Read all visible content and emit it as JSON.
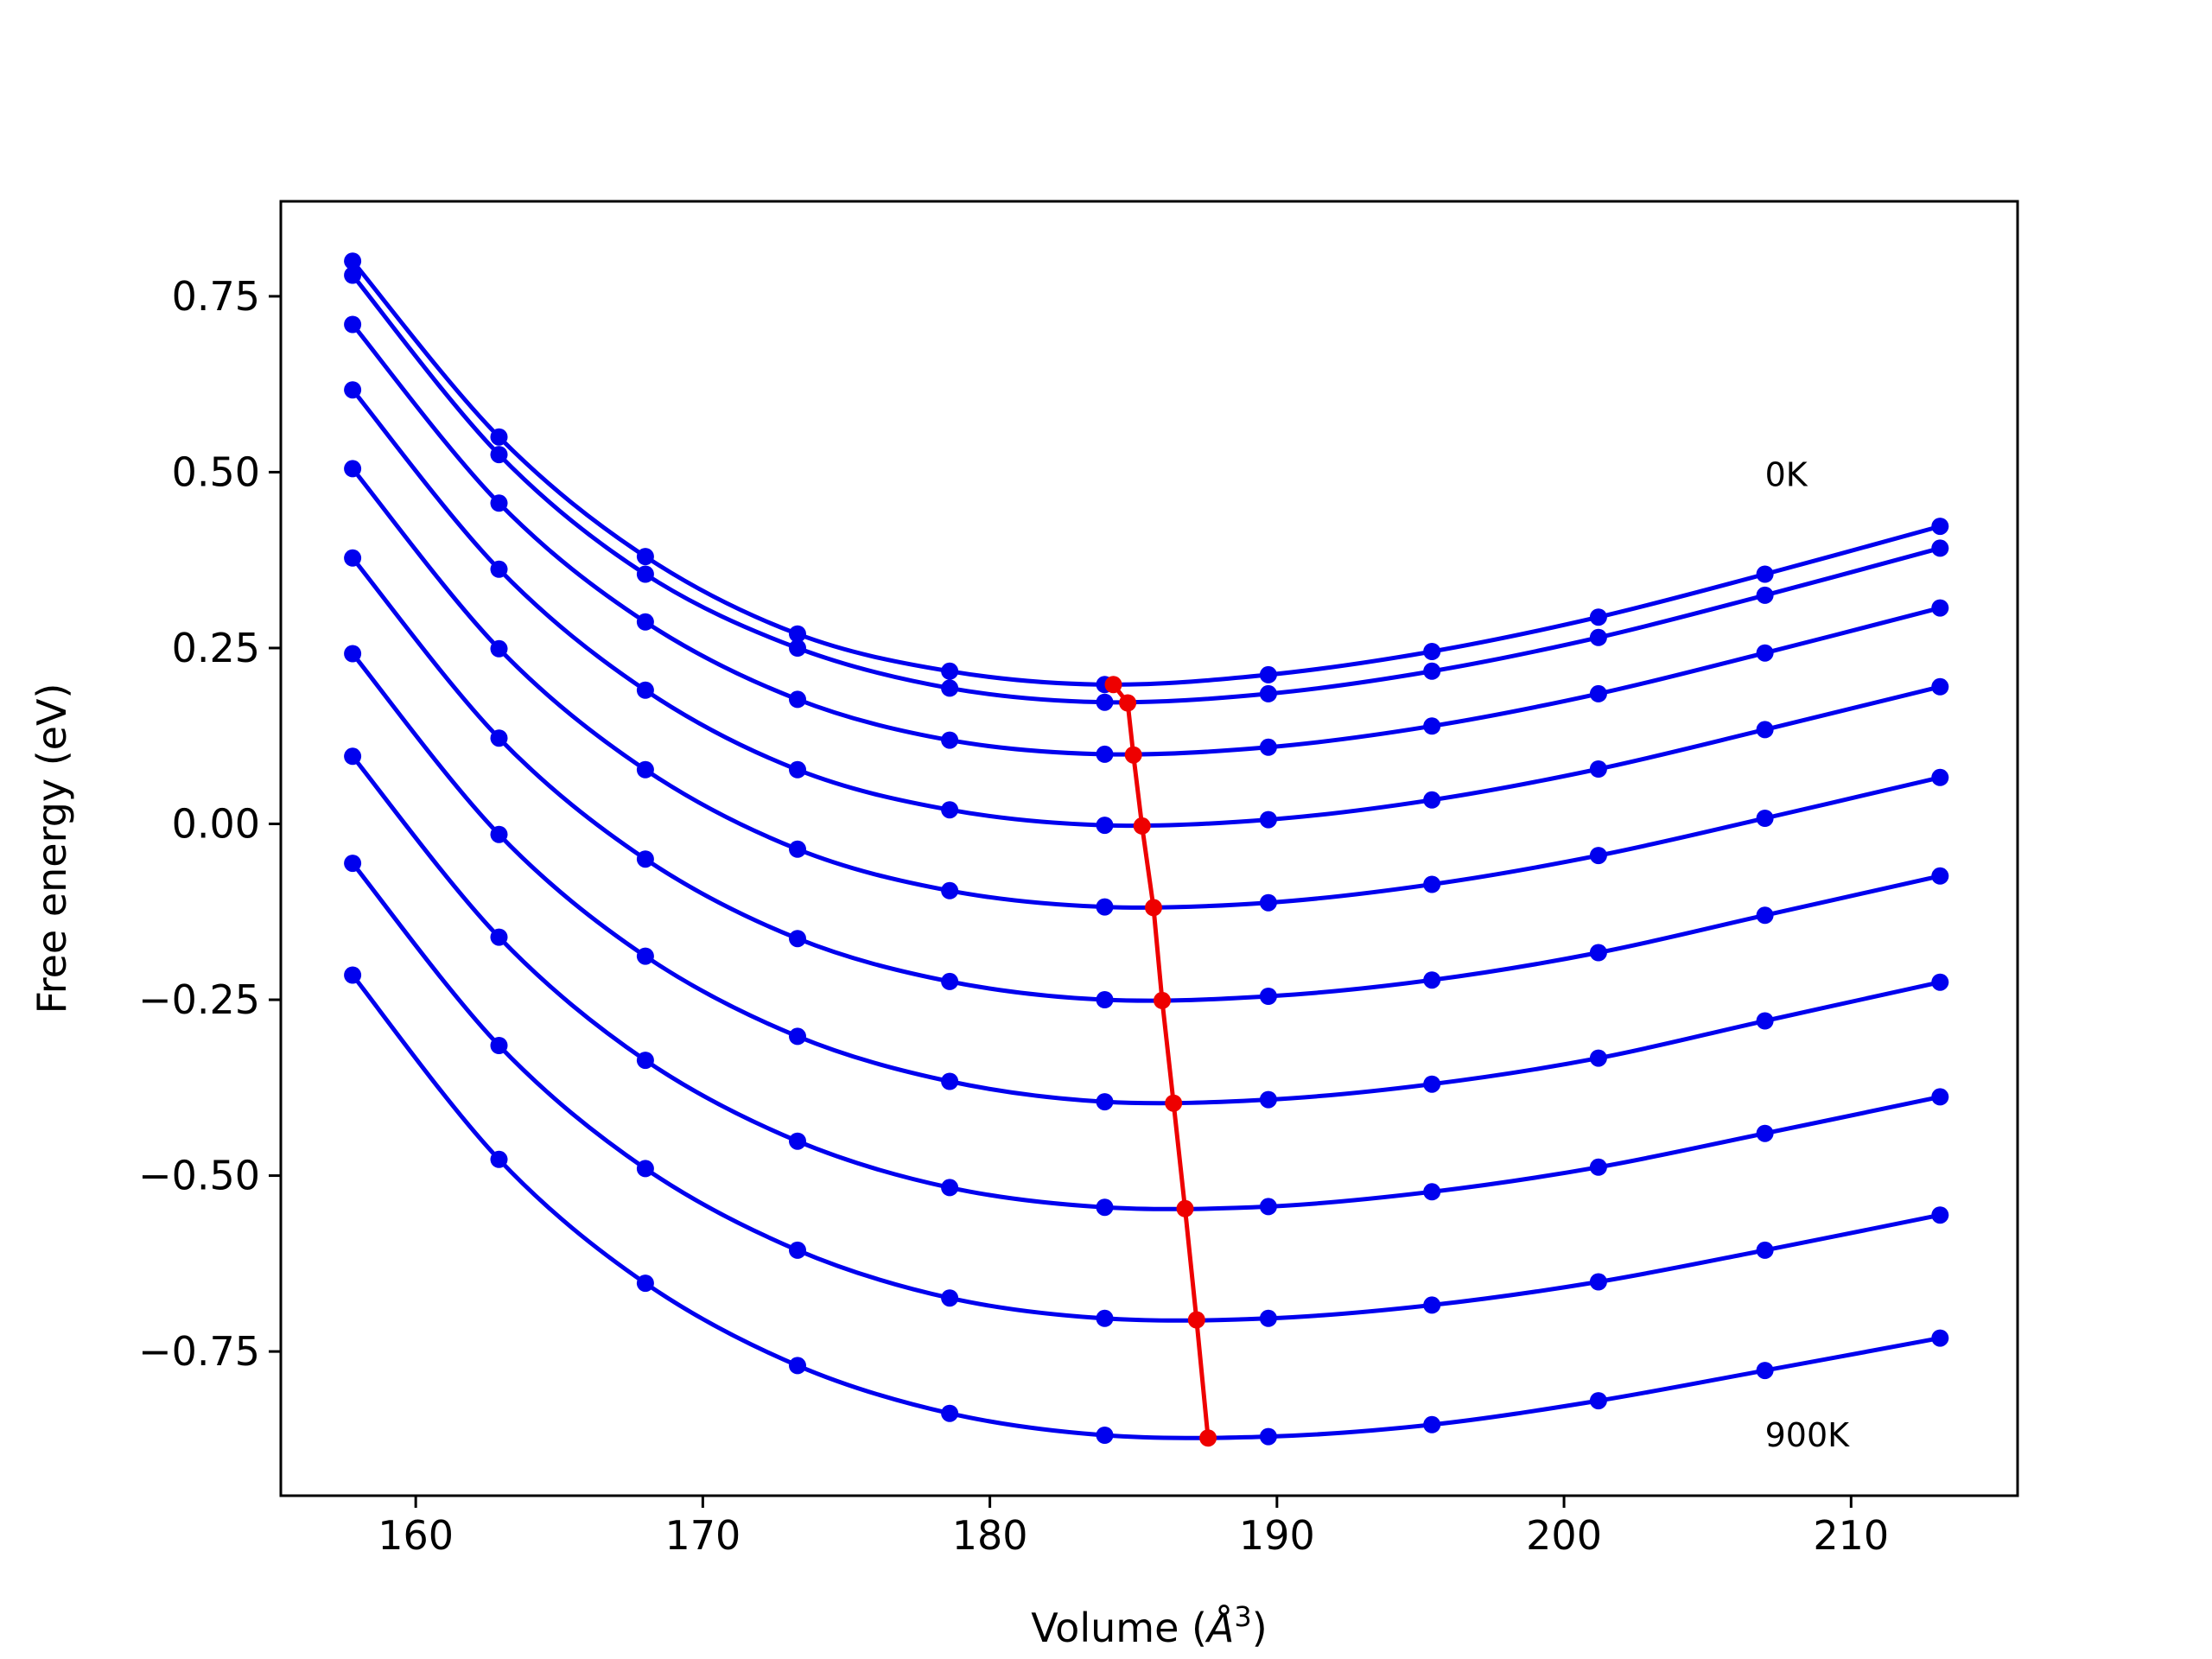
{
  "chart_data": {
    "type": "line",
    "title": "",
    "xlabel": {
      "base": "Volume (",
      "symbol": "Å",
      "sup": "3",
      "close": ")"
    },
    "ylabel": "Free energy (eV)",
    "xlim": [
      155.3,
      215.8
    ],
    "ylim": [
      -0.955,
      0.885
    ],
    "x_ticks": [
      160,
      170,
      180,
      190,
      200,
      210
    ],
    "x_tick_labels": [
      "160",
      "170",
      "180",
      "190",
      "200",
      "210"
    ],
    "y_ticks": [
      0.75,
      0.5,
      0.25,
      0.0,
      -0.25,
      -0.5,
      -0.75
    ],
    "y_tick_labels": [
      "0.75",
      "0.50",
      "0.25",
      "0.00",
      "−0.25",
      "−0.50",
      "−0.75"
    ],
    "grid": false,
    "legend": "none",
    "colors": {
      "curves": "#0000ee",
      "minimum_line": "#ee0000",
      "frame": "#000000"
    },
    "x": [
      157.8,
      162.9,
      168.0,
      173.3,
      178.6,
      184.0,
      189.7,
      195.4,
      201.2,
      207.0,
      213.1
    ],
    "series": [
      {
        "values": [
          0.8,
          0.55,
          0.38,
          0.27,
          0.217,
          0.198,
          0.212,
          0.245,
          0.294,
          0.355,
          0.423
        ]
      },
      {
        "values": [
          0.78,
          0.525,
          0.355,
          0.25,
          0.193,
          0.173,
          0.185,
          0.217,
          0.265,
          0.325,
          0.392
        ]
      },
      {
        "values": [
          0.71,
          0.456,
          0.287,
          0.177,
          0.119,
          0.099,
          0.109,
          0.139,
          0.185,
          0.243,
          0.307
        ]
      },
      {
        "values": [
          0.617,
          0.362,
          0.19,
          0.077,
          0.02,
          -0.002,
          0.006,
          0.034,
          0.078,
          0.134,
          0.195
        ]
      },
      {
        "values": [
          0.505,
          0.249,
          0.077,
          -0.036,
          -0.095,
          -0.118,
          -0.112,
          -0.086,
          -0.045,
          0.008,
          0.066
        ]
      },
      {
        "values": [
          0.378,
          0.122,
          -0.05,
          -0.163,
          -0.224,
          -0.25,
          -0.245,
          -0.222,
          -0.183,
          -0.13,
          -0.074
        ]
      },
      {
        "values": [
          0.242,
          -0.015,
          -0.188,
          -0.302,
          -0.366,
          -0.395,
          -0.392,
          -0.37,
          -0.333,
          -0.28,
          -0.225
        ]
      },
      {
        "values": [
          0.096,
          -0.161,
          -0.336,
          -0.451,
          -0.517,
          -0.545,
          -0.544,
          -0.523,
          -0.488,
          -0.44,
          -0.388
        ]
      },
      {
        "values": [
          -0.056,
          -0.315,
          -0.49,
          -0.606,
          -0.674,
          -0.703,
          -0.703,
          -0.684,
          -0.651,
          -0.606,
          -0.556
        ]
      },
      {
        "values": [
          -0.215,
          -0.477,
          -0.653,
          -0.77,
          -0.838,
          -0.869,
          -0.871,
          -0.854,
          -0.82,
          -0.777,
          -0.731
        ]
      }
    ],
    "minimum_points": {
      "x": [
        184.3,
        184.8,
        185.0,
        185.3,
        185.7,
        186.0,
        186.4,
        186.8,
        187.2,
        187.6
      ],
      "y": [
        0.198,
        0.172,
        0.098,
        -0.003,
        -0.119,
        -0.251,
        -0.397,
        -0.547,
        -0.705,
        -0.873
      ]
    },
    "annotations": [
      {
        "text": "0K",
        "x": 207.0,
        "y": 0.48
      },
      {
        "text": "900K",
        "x": 207.0,
        "y": -0.885
      }
    ]
  }
}
